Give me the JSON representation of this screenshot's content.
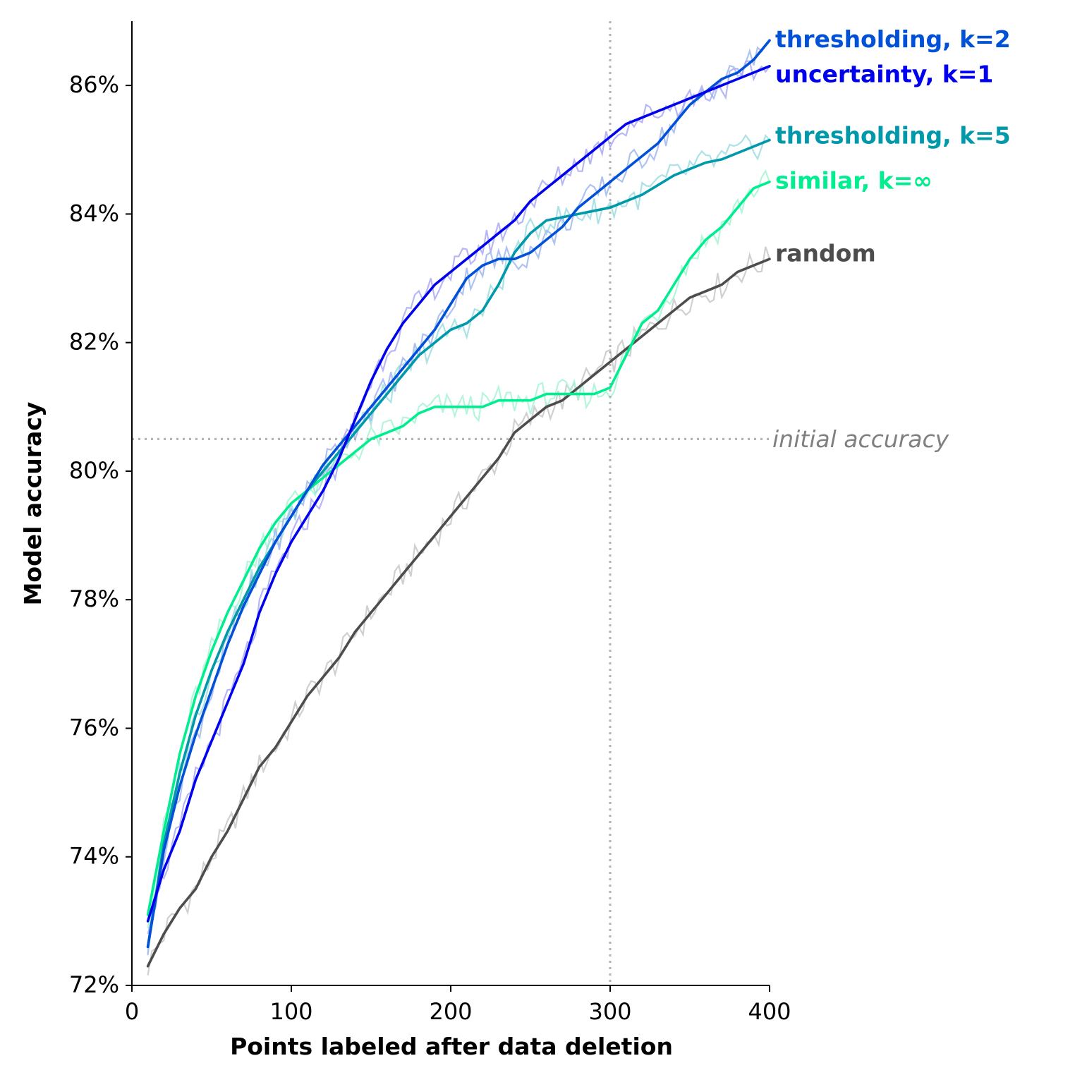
{
  "chart_data": {
    "type": "line",
    "xlabel": "Points labeled after data deletion",
    "ylabel": "Model accuracy",
    "xlim": [
      0,
      400
    ],
    "ylim": [
      72,
      87
    ],
    "xticks": [
      0,
      100,
      200,
      300,
      400
    ],
    "yticks": [
      72,
      74,
      76,
      78,
      80,
      82,
      84,
      86
    ],
    "ytick_suffix": "%",
    "grid": false,
    "reference_lines": {
      "initial_accuracy": 80.5,
      "initial_accuracy_label": "initial accuracy",
      "vertical_x": 300
    },
    "series": [
      {
        "name": "random",
        "color": "#4d4d4d",
        "raw_color": "#c8c8c8",
        "x": [
          10,
          20,
          30,
          40,
          50,
          60,
          70,
          80,
          90,
          100,
          110,
          120,
          130,
          140,
          150,
          160,
          170,
          180,
          190,
          200,
          210,
          220,
          230,
          240,
          250,
          260,
          270,
          280,
          290,
          300,
          310,
          320,
          330,
          340,
          350,
          360,
          370,
          380,
          390,
          400
        ],
        "y": [
          72.3,
          72.8,
          73.2,
          73.5,
          74.0,
          74.4,
          74.9,
          75.4,
          75.7,
          76.1,
          76.5,
          76.8,
          77.1,
          77.5,
          77.8,
          78.1,
          78.4,
          78.7,
          79.0,
          79.3,
          79.6,
          79.9,
          80.2,
          80.6,
          80.8,
          81.0,
          81.1,
          81.3,
          81.5,
          81.7,
          81.9,
          82.1,
          82.3,
          82.5,
          82.7,
          82.8,
          82.9,
          83.1,
          83.2,
          83.3
        ]
      },
      {
        "name": "similar, k=∞",
        "color": "#00ee90",
        "raw_color": "#a8f5d4",
        "x": [
          10,
          20,
          30,
          40,
          50,
          60,
          70,
          80,
          90,
          100,
          110,
          120,
          130,
          140,
          150,
          160,
          170,
          180,
          190,
          200,
          210,
          220,
          230,
          240,
          250,
          260,
          270,
          280,
          290,
          300,
          310,
          320,
          330,
          340,
          350,
          360,
          370,
          380,
          390,
          400
        ],
        "y": [
          73.1,
          74.4,
          75.6,
          76.5,
          77.2,
          77.8,
          78.3,
          78.8,
          79.2,
          79.5,
          79.7,
          79.9,
          80.1,
          80.3,
          80.5,
          80.6,
          80.7,
          80.9,
          81.0,
          81.0,
          81.0,
          81.0,
          81.1,
          81.1,
          81.1,
          81.2,
          81.2,
          81.2,
          81.2,
          81.3,
          81.8,
          82.3,
          82.5,
          82.9,
          83.3,
          83.6,
          83.8,
          84.1,
          84.4,
          84.5
        ]
      },
      {
        "name": "thresholding, k=5",
        "color": "#0099aa",
        "raw_color": "#9edde0",
        "x": [
          10,
          20,
          30,
          40,
          50,
          60,
          70,
          80,
          90,
          100,
          110,
          120,
          130,
          140,
          150,
          160,
          170,
          180,
          190,
          200,
          210,
          220,
          230,
          240,
          250,
          260,
          270,
          280,
          290,
          300,
          310,
          320,
          330,
          340,
          350,
          360,
          370,
          380,
          390,
          400
        ],
        "y": [
          72.6,
          74.2,
          75.3,
          76.2,
          76.9,
          77.5,
          78.0,
          78.5,
          78.9,
          79.3,
          79.7,
          80.0,
          80.3,
          80.6,
          80.9,
          81.2,
          81.5,
          81.8,
          82.0,
          82.2,
          82.3,
          82.5,
          82.9,
          83.4,
          83.7,
          83.9,
          83.95,
          84.0,
          84.05,
          84.1,
          84.2,
          84.3,
          84.45,
          84.6,
          84.7,
          84.8,
          84.85,
          84.95,
          85.05,
          85.15
        ]
      },
      {
        "name": "thresholding, k=2",
        "color": "#0050d8",
        "raw_color": "#a0b8ee",
        "x": [
          10,
          20,
          30,
          40,
          50,
          60,
          70,
          80,
          90,
          100,
          110,
          120,
          130,
          140,
          150,
          160,
          170,
          180,
          190,
          200,
          210,
          220,
          230,
          240,
          250,
          260,
          270,
          280,
          290,
          300,
          310,
          320,
          330,
          340,
          350,
          360,
          370,
          380,
          390,
          400
        ],
        "y": [
          72.6,
          74.1,
          75.1,
          75.9,
          76.6,
          77.3,
          77.9,
          78.4,
          78.9,
          79.3,
          79.7,
          80.1,
          80.4,
          80.7,
          81.0,
          81.3,
          81.6,
          81.9,
          82.2,
          82.6,
          83.0,
          83.2,
          83.3,
          83.3,
          83.4,
          83.6,
          83.8,
          84.1,
          84.3,
          84.5,
          84.7,
          84.9,
          85.1,
          85.4,
          85.7,
          85.9,
          86.1,
          86.2,
          86.4,
          86.7
        ]
      },
      {
        "name": "uncertainty, k=1",
        "color": "#0000ee",
        "raw_color": "#aaaaf5",
        "x": [
          10,
          20,
          30,
          40,
          50,
          60,
          70,
          80,
          90,
          100,
          110,
          120,
          130,
          140,
          150,
          160,
          170,
          180,
          190,
          200,
          210,
          220,
          230,
          240,
          250,
          260,
          270,
          280,
          290,
          300,
          310,
          320,
          330,
          340,
          350,
          360,
          370,
          380,
          390,
          400
        ],
        "y": [
          73.0,
          73.8,
          74.4,
          75.2,
          75.8,
          76.4,
          77.0,
          77.8,
          78.4,
          78.9,
          79.3,
          79.7,
          80.2,
          80.8,
          81.4,
          81.9,
          82.3,
          82.6,
          82.9,
          83.1,
          83.3,
          83.5,
          83.7,
          83.9,
          84.2,
          84.4,
          84.6,
          84.8,
          85.0,
          85.2,
          85.4,
          85.5,
          85.6,
          85.7,
          85.8,
          85.9,
          86.0,
          86.1,
          86.2,
          86.3
        ]
      }
    ],
    "end_labels": [
      {
        "series": "thresholding, k=2",
        "text": "thresholding, k=2",
        "color": "#0050d8",
        "y": 86.7
      },
      {
        "series": "uncertainty, k=1",
        "text": "uncertainty, k=1",
        "color": "#0000ee",
        "y": 86.2
      },
      {
        "series": "thresholding, k=5",
        "text": "thresholding, k=5",
        "color": "#0099aa",
        "y": 85.2
      },
      {
        "series": "similar, k=∞",
        "text": "similar, k=∞",
        "color": "#00ee90",
        "y": 84.5
      },
      {
        "series": "random",
        "text": "random",
        "color": "#4d4d4d",
        "y": 83.3
      }
    ]
  }
}
